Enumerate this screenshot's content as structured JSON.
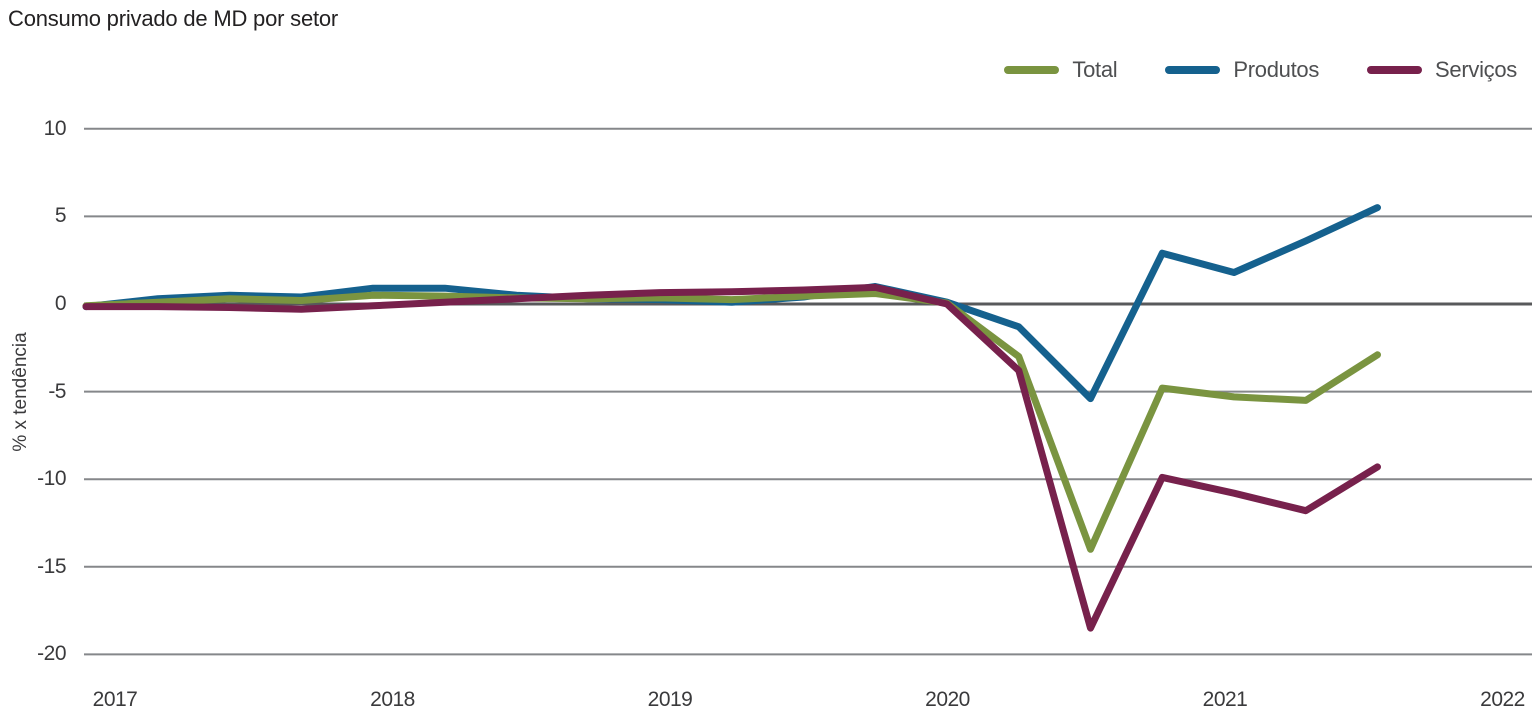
{
  "title": "Consumo privado de MD por setor",
  "legend": {
    "items": [
      {
        "label": "Total",
        "color": "#7a9440"
      },
      {
        "label": "Produtos",
        "color": "#15618e"
      },
      {
        "label": "Serviços",
        "color": "#77214c"
      }
    ]
  },
  "colors": {
    "background": "#ffffff",
    "gridline": "#85878a",
    "zero_line": "#58595b",
    "title_text": "#232122",
    "axis_text": "#3a3a3c",
    "legend_text": "#4e4f51",
    "total": "#7a9440",
    "produtos": "#15618e",
    "servicos": "#77214c"
  },
  "chart_data": {
    "type": "line",
    "title": "Consumo privado de MD por setor",
    "ylabel": "% x tendência",
    "xlabel": "",
    "x_unit": "trimestre",
    "x": [
      "2017T1",
      "2017T2",
      "2017T3",
      "2017T4",
      "2018T1",
      "2018T2",
      "2018T3",
      "2018T4",
      "2019T1",
      "2019T2",
      "2019T3",
      "2019T4",
      "2020T1",
      "2020T2",
      "2020T3",
      "2020T4",
      "2021T1",
      "2021T2",
      "2021T3"
    ],
    "series": [
      {
        "name": "Total",
        "color": "#7a9440",
        "values": [
          -0.1,
          0.1,
          0.3,
          0.2,
          0.5,
          0.45,
          0.35,
          0.3,
          0.35,
          0.25,
          0.45,
          0.6,
          0.05,
          -3.0,
          -14.0,
          -4.8,
          -5.3,
          -5.5,
          -2.9
        ]
      },
      {
        "name": "Produtos",
        "color": "#15618e",
        "values": [
          -0.15,
          0.3,
          0.5,
          0.4,
          0.9,
          0.9,
          0.5,
          0.3,
          0.25,
          0.1,
          0.4,
          1.0,
          0.1,
          -1.3,
          -5.4,
          2.9,
          1.8,
          3.6,
          5.5
        ]
      },
      {
        "name": "Serviços",
        "color": "#77214c",
        "values": [
          -0.15,
          -0.15,
          -0.2,
          -0.3,
          -0.1,
          0.1,
          0.3,
          0.5,
          0.65,
          0.7,
          0.8,
          0.95,
          0.0,
          -3.8,
          -18.5,
          -9.9,
          -10.8,
          -11.8,
          -9.3
        ]
      }
    ],
    "ylim": [
      -20,
      10
    ],
    "yticks": [
      10,
      5,
      0,
      -5,
      -10,
      -15,
      -20
    ],
    "xticks": [
      "2017",
      "2018",
      "2019",
      "2020",
      "2021",
      "2022"
    ],
    "grid": "horizontal",
    "zero_line_emphasized": true,
    "legend_position": "top-right"
  }
}
